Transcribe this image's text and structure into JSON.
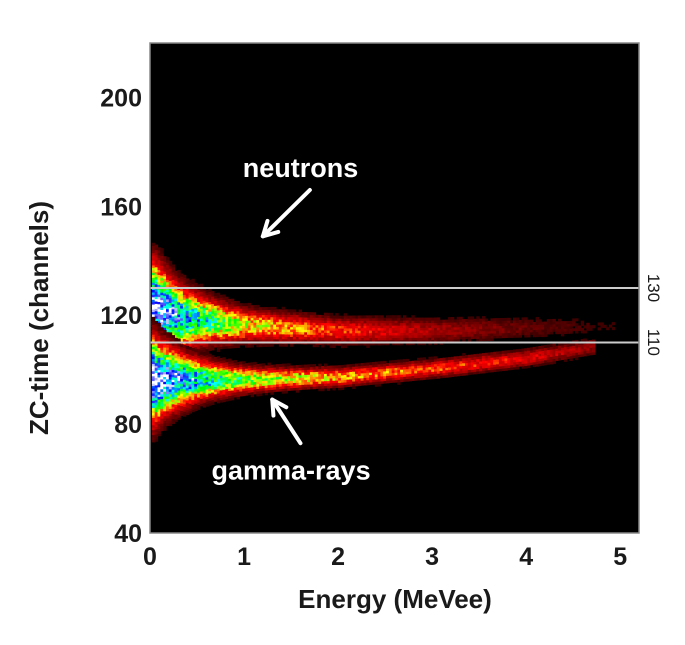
{
  "chart_data": {
    "type": "heatmap",
    "title": "",
    "xlabel": "Energy (MeVee)",
    "ylabel": "ZC-time (channels)",
    "xlim": [
      0,
      5.2
    ],
    "ylim": [
      40,
      220
    ],
    "x_ticks": [
      0,
      1,
      2,
      3,
      4,
      5
    ],
    "y_ticks": [
      40,
      80,
      120,
      160,
      200
    ],
    "background_color": "#000000",
    "grid": false,
    "colormap": [
      "#000000",
      "#8b0000",
      "#ff0000",
      "#ffff00",
      "#00ff00",
      "#00ffff",
      "#0000ff",
      "#ffffff"
    ],
    "bands": [
      {
        "name": "neutrons",
        "centers": [
          [
            0.05,
            122
          ],
          [
            0.3,
            119
          ],
          [
            1.0,
            116
          ],
          [
            2.0,
            114
          ],
          [
            3.0,
            114
          ],
          [
            4.0,
            115
          ],
          [
            5.0,
            116
          ]
        ],
        "intensity": [
          [
            0.05,
            1.0
          ],
          [
            0.3,
            0.8
          ],
          [
            1.0,
            0.45
          ],
          [
            2.0,
            0.3
          ],
          [
            3.0,
            0.18
          ],
          [
            4.0,
            0.1
          ],
          [
            5.0,
            0.05
          ]
        ]
      },
      {
        "name": "gamma-rays",
        "centers": [
          [
            0.05,
            96
          ],
          [
            0.3,
            96
          ],
          [
            1.0,
            96
          ],
          [
            2.0,
            97
          ],
          [
            3.0,
            100
          ],
          [
            4.0,
            104
          ],
          [
            4.7,
            108
          ]
        ],
        "intensity": [
          [
            0.05,
            1.0
          ],
          [
            0.3,
            0.85
          ],
          [
            1.0,
            0.55
          ],
          [
            2.0,
            0.4
          ],
          [
            3.0,
            0.32
          ],
          [
            4.0,
            0.25
          ],
          [
            4.7,
            0.15
          ]
        ]
      }
    ],
    "reference_lines": [
      {
        "y": 130,
        "label": "130",
        "color": "#cccccc"
      },
      {
        "y": 110,
        "label": "110",
        "color": "#cccccc"
      }
    ],
    "annotations": [
      {
        "text": "neutrons",
        "arrow_from": [
          1.7,
          166
        ],
        "arrow_to": [
          1.2,
          149
        ]
      },
      {
        "text": "gamma-rays",
        "arrow_from": [
          1.6,
          73
        ],
        "arrow_to": [
          1.3,
          89
        ]
      }
    ]
  }
}
